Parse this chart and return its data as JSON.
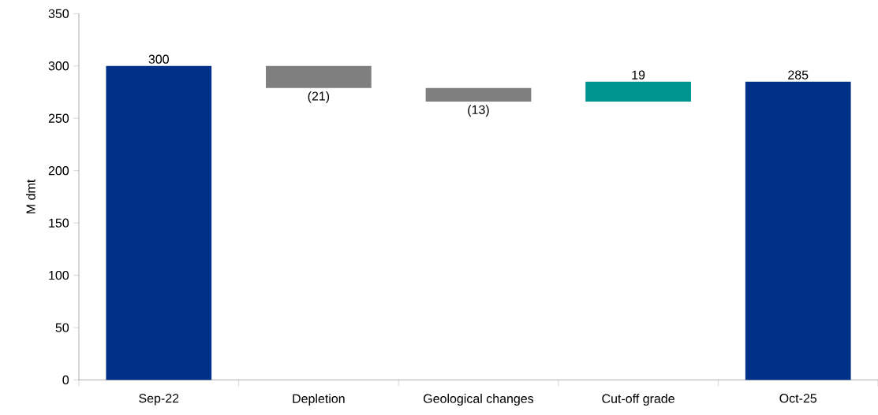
{
  "chart_data": {
    "type": "bar",
    "ylabel": "M dmt",
    "categories": [
      "Sep-22",
      "Depletion",
      "Geological changes",
      "Cut-off grade",
      "Oct-25"
    ],
    "values": [
      300,
      -21,
      -13,
      19,
      285
    ],
    "base": [
      0,
      300,
      279,
      266,
      0
    ],
    "colors": [
      "#003087",
      "#7f7f7f",
      "#7f7f7f",
      "#009490",
      "#003087"
    ],
    "value_labels": [
      "300",
      "(21)",
      "(13)",
      "19",
      "285"
    ],
    "ylim": [
      0,
      350
    ],
    "yticks": [
      0,
      50,
      100,
      150,
      200,
      250,
      300,
      350
    ]
  }
}
